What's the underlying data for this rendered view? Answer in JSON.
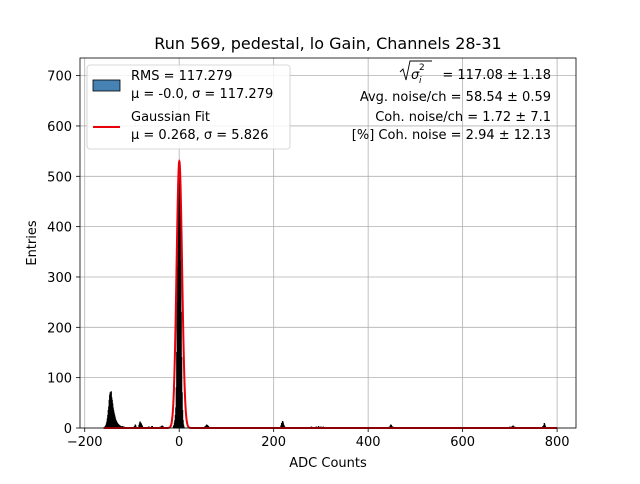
{
  "chart_data": {
    "type": "histogram",
    "title": "Run 569, pedestal, lo Gain, Channels 28-31",
    "xlabel": "ADC Counts",
    "ylabel": "Entries",
    "xlim": [
      -210,
      840
    ],
    "ylim": [
      0,
      735
    ],
    "xticks": [
      -200,
      0,
      200,
      400,
      600,
      800
    ],
    "yticks": [
      0,
      100,
      200,
      300,
      400,
      500,
      600,
      700
    ],
    "grid": true,
    "legend_position": "top-left",
    "legend": [
      {
        "kind": "patch",
        "color": "#4682b4",
        "line1": "RMS = 117.279",
        "line2": "μ = -0.0, σ = 117.279"
      },
      {
        "kind": "line",
        "color": "#e8000b",
        "line1": "Gaussian Fit",
        "line2": "μ = 0.268, σ = 5.826"
      }
    ],
    "annotations": {
      "sqrt_value": "= 117.08 ± 1.18",
      "sqrt_symbol": "σ",
      "sqrt_subscript": "i",
      "sqrt_superscript": "2",
      "avg_noise": "Avg. noise/ch = 58.54 ± 0.59",
      "coh_noise": "Coh. noise/ch = 1.72 ± 7.1",
      "pct_coh_noise": "[%] Coh. noise = 2.94 ± 12.13"
    },
    "gaussian_fit": {
      "mu": 0.268,
      "sigma": 5.826,
      "amplitude": 530
    },
    "histogram": {
      "bin_width": 1,
      "x": [
        -158,
        -157,
        -156,
        -155,
        -154,
        -153,
        -152,
        -151,
        -150,
        -149,
        -148,
        -147,
        -146,
        -145,
        -144,
        -143,
        -142,
        -141,
        -140,
        -139,
        -138,
        -137,
        -136,
        -135,
        -134,
        -133,
        -132,
        -131,
        -130,
        -129,
        -128,
        -127,
        -126,
        -125,
        -124,
        -123,
        -122,
        -121,
        -120,
        -119,
        -118,
        -117,
        -116,
        -115,
        -114,
        -113,
        -112,
        -111,
        -110,
        -109,
        -108,
        -95,
        -94,
        -93,
        -92,
        -85,
        -84,
        -83,
        -82,
        -81,
        -80,
        -79,
        -78,
        -65,
        -64,
        -58,
        -57,
        -40,
        -38,
        -37,
        -36,
        -35,
        -34,
        -12,
        -11,
        -10,
        -9,
        -8,
        -7,
        -6,
        -5,
        -4,
        -3,
        -2,
        -1,
        0,
        1,
        2,
        3,
        4,
        5,
        6,
        7,
        8,
        9,
        10,
        55,
        57,
        58,
        60,
        62,
        215,
        216,
        217,
        218,
        219,
        220,
        221,
        222,
        223,
        280,
        290,
        295,
        300,
        305,
        445,
        447,
        448,
        449,
        450,
        452,
        700,
        705,
        707,
        710,
        770,
        772,
        773,
        774,
        775
      ],
      "y": [
        1,
        2,
        3,
        5,
        8,
        12,
        18,
        25,
        35,
        42,
        55,
        65,
        70,
        68,
        72,
        60,
        55,
        48,
        40,
        35,
        30,
        26,
        22,
        18,
        15,
        13,
        11,
        9,
        8,
        7,
        6,
        5,
        4,
        4,
        3,
        3,
        2,
        2,
        3,
        2,
        1,
        2,
        1,
        1,
        1,
        1,
        1,
        1,
        1,
        1,
        1,
        2,
        3,
        6,
        4,
        5,
        8,
        12,
        10,
        9,
        7,
        5,
        3,
        2,
        2,
        3,
        3,
        2,
        2,
        3,
        4,
        3,
        2,
        3,
        5,
        10,
        15,
        25,
        40,
        80,
        150,
        250,
        320,
        400,
        480,
        525,
        500,
        430,
        330,
        230,
        140,
        70,
        35,
        15,
        6,
        2,
        3,
        4,
        6,
        5,
        3,
        2,
        5,
        9,
        10,
        13,
        10,
        6,
        4,
        2,
        2,
        2,
        3,
        2,
        2,
        2,
        4,
        6,
        5,
        3,
        2,
        2,
        3,
        4,
        2,
        3,
        5,
        9,
        6,
        3
      ]
    }
  }
}
